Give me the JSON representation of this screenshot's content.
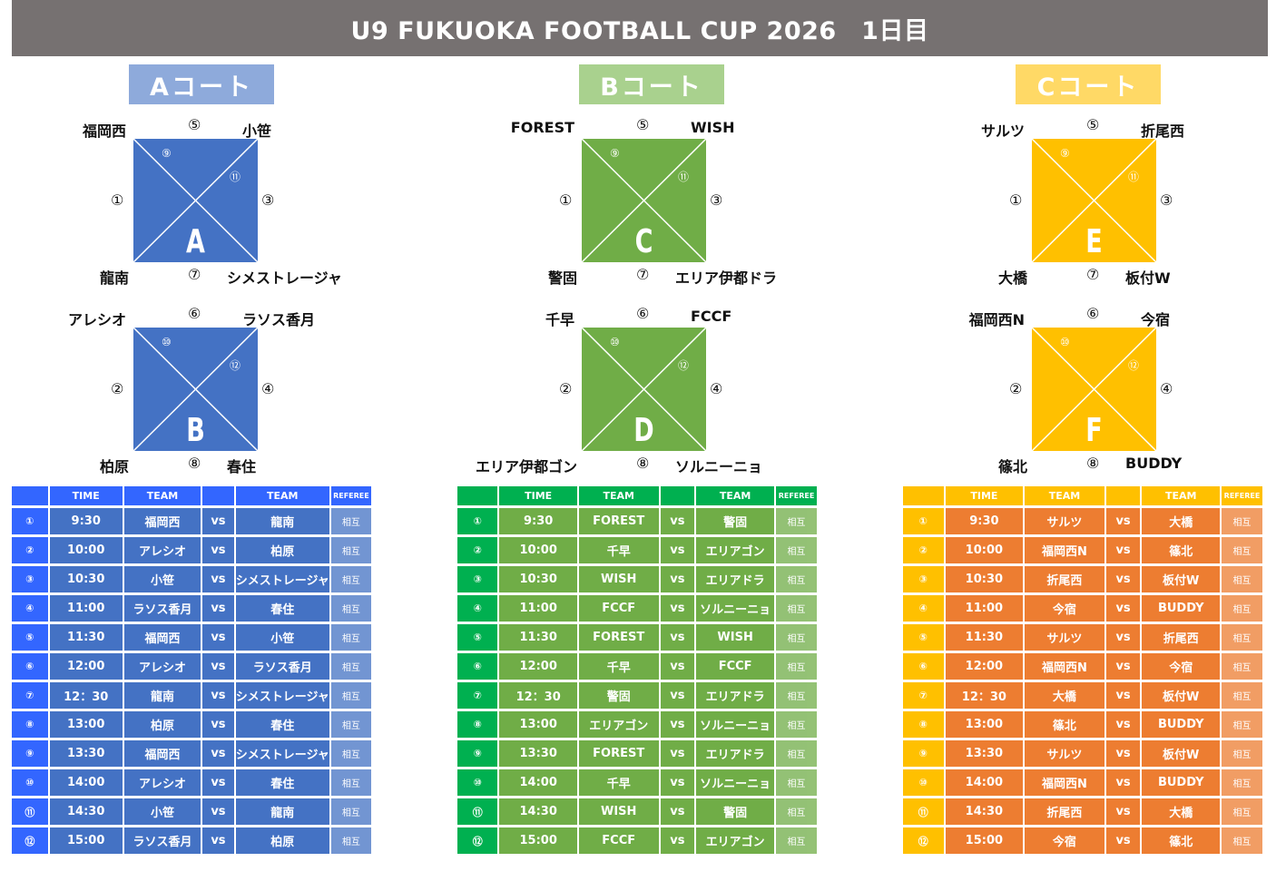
{
  "title": "U9 FUKUOKA FOOTBALL CUP 2026　1日目",
  "headers": {
    "time": "TIME",
    "team1": "TEAM",
    "team2": "TEAM",
    "referee": "REFEREE"
  },
  "courts": [
    {
      "label": "Aコート",
      "colors": {
        "label_bg": "#8eaadb",
        "square": "#4472c4",
        "header": "#3366ff",
        "row": "#4472c4"
      },
      "squares": [
        {
          "letter": "A",
          "tl": "福岡西",
          "tr": "小笹",
          "bl": "龍南",
          "br": "シメストレージャ",
          "top": "⑤",
          "left": "①",
          "right": "③",
          "bottom": "⑦",
          "in1": "⑨",
          "in2": "⑪"
        },
        {
          "letter": "B",
          "tl": "アレシオ",
          "tr": "ラソス香月",
          "bl": "柏原",
          "br": "春住",
          "top": "⑥",
          "left": "②",
          "right": "④",
          "bottom": "⑧",
          "in1": "⑩",
          "in2": "⑫"
        }
      ],
      "rows": [
        {
          "no": "①",
          "time": "9:30",
          "t1": "福岡西",
          "vs": "vs",
          "t2": "龍南",
          "ref": "相互"
        },
        {
          "no": "②",
          "time": "10:00",
          "t1": "アレシオ",
          "vs": "vs",
          "t2": "柏原",
          "ref": "相互"
        },
        {
          "no": "③",
          "time": "10:30",
          "t1": "小笹",
          "vs": "vs",
          "t2": "シメストレージャ",
          "ref": "相互"
        },
        {
          "no": "④",
          "time": "11:00",
          "t1": "ラソス香月",
          "vs": "vs",
          "t2": "春住",
          "ref": "相互"
        },
        {
          "no": "⑤",
          "time": "11:30",
          "t1": "福岡西",
          "vs": "vs",
          "t2": "小笹",
          "ref": "相互"
        },
        {
          "no": "⑥",
          "time": "12:00",
          "t1": "アレシオ",
          "vs": "vs",
          "t2": "ラソス香月",
          "ref": "相互"
        },
        {
          "no": "⑦",
          "time": "12：30",
          "t1": "龍南",
          "vs": "vs",
          "t2": "シメストレージャ",
          "ref": "相互"
        },
        {
          "no": "⑧",
          "time": "13:00",
          "t1": "柏原",
          "vs": "vs",
          "t2": "春住",
          "ref": "相互"
        },
        {
          "no": "⑨",
          "time": "13:30",
          "t1": "福岡西",
          "vs": "vs",
          "t2": "シメストレージャ",
          "ref": "相互"
        },
        {
          "no": "⑩",
          "time": "14:00",
          "t1": "アレシオ",
          "vs": "vs",
          "t2": "春住",
          "ref": "相互"
        },
        {
          "no": "⑪",
          "time": "14:30",
          "t1": "小笹",
          "vs": "vs",
          "t2": "龍南",
          "ref": "相互"
        },
        {
          "no": "⑫",
          "time": "15:00",
          "t1": "ラソス香月",
          "vs": "vs",
          "t2": "柏原",
          "ref": "相互"
        }
      ]
    },
    {
      "label": "Bコート",
      "colors": {
        "label_bg": "#a9d18e",
        "square": "#70ad47",
        "header": "#00b050",
        "row": "#70ad47"
      },
      "squares": [
        {
          "letter": "C",
          "tl": "FOREST",
          "tr": "WISH",
          "bl": "警固",
          "br": "エリア伊都ドラ",
          "top": "⑤",
          "left": "①",
          "right": "③",
          "bottom": "⑦",
          "in1": "⑨",
          "in2": "⑪"
        },
        {
          "letter": "D",
          "tl": "千早",
          "tr": "FCCF",
          "bl": "エリア伊都ゴン",
          "br": "ソルニーニョ",
          "top": "⑥",
          "left": "②",
          "right": "④",
          "bottom": "⑧",
          "in1": "⑩",
          "in2": "⑫"
        }
      ],
      "rows": [
        {
          "no": "①",
          "time": "9:30",
          "t1": "FOREST",
          "vs": "vs",
          "t2": "警固",
          "ref": "相互"
        },
        {
          "no": "②",
          "time": "10:00",
          "t1": "千早",
          "vs": "vs",
          "t2": "エリアゴン",
          "ref": "相互"
        },
        {
          "no": "③",
          "time": "10:30",
          "t1": "WISH",
          "vs": "vs",
          "t2": "エリアドラ",
          "ref": "相互"
        },
        {
          "no": "④",
          "time": "11:00",
          "t1": "FCCF",
          "vs": "vs",
          "t2": "ソルニーニョ",
          "ref": "相互"
        },
        {
          "no": "⑤",
          "time": "11:30",
          "t1": "FOREST",
          "vs": "vs",
          "t2": "WISH",
          "ref": "相互"
        },
        {
          "no": "⑥",
          "time": "12:00",
          "t1": "千早",
          "vs": "vs",
          "t2": "FCCF",
          "ref": "相互"
        },
        {
          "no": "⑦",
          "time": "12：30",
          "t1": "警固",
          "vs": "vs",
          "t2": "エリアドラ",
          "ref": "相互"
        },
        {
          "no": "⑧",
          "time": "13:00",
          "t1": "エリアゴン",
          "vs": "vs",
          "t2": "ソルニーニョ",
          "ref": "相互"
        },
        {
          "no": "⑨",
          "time": "13:30",
          "t1": "FOREST",
          "vs": "vs",
          "t2": "エリアドラ",
          "ref": "相互"
        },
        {
          "no": "⑩",
          "time": "14:00",
          "t1": "千早",
          "vs": "vs",
          "t2": "ソルニーニョ",
          "ref": "相互"
        },
        {
          "no": "⑪",
          "time": "14:30",
          "t1": "WISH",
          "vs": "vs",
          "t2": "警固",
          "ref": "相互"
        },
        {
          "no": "⑫",
          "time": "15:00",
          "t1": "FCCF",
          "vs": "vs",
          "t2": "エリアゴン",
          "ref": "相互"
        }
      ]
    },
    {
      "label": "Cコート",
      "colors": {
        "label_bg": "#ffd966",
        "square": "#ffc000",
        "header": "#ffc000",
        "row": "#ed7d31"
      },
      "squares": [
        {
          "letter": "E",
          "tl": "サルツ",
          "tr": "折尾西",
          "bl": "大橋",
          "br": "板付W",
          "top": "⑤",
          "left": "①",
          "right": "③",
          "bottom": "⑦",
          "in1": "⑨",
          "in2": "⑪"
        },
        {
          "letter": "F",
          "tl": "福岡西N",
          "tr": "今宿",
          "bl": "篠北",
          "br": "BUDDY",
          "top": "⑥",
          "left": "②",
          "right": "④",
          "bottom": "⑧",
          "in1": "⑩",
          "in2": "⑫"
        }
      ],
      "rows": [
        {
          "no": "①",
          "time": "9:30",
          "t1": "サルツ",
          "vs": "vs",
          "t2": "大橋",
          "ref": "相互"
        },
        {
          "no": "②",
          "time": "10:00",
          "t1": "福岡西N",
          "vs": "vs",
          "t2": "篠北",
          "ref": "相互"
        },
        {
          "no": "③",
          "time": "10:30",
          "t1": "折尾西",
          "vs": "vs",
          "t2": "板付W",
          "ref": "相互"
        },
        {
          "no": "④",
          "time": "11:00",
          "t1": "今宿",
          "vs": "vs",
          "t2": "BUDDY",
          "ref": "相互"
        },
        {
          "no": "⑤",
          "time": "11:30",
          "t1": "サルツ",
          "vs": "vs",
          "t2": "折尾西",
          "ref": "相互"
        },
        {
          "no": "⑥",
          "time": "12:00",
          "t1": "福岡西N",
          "vs": "vs",
          "t2": "今宿",
          "ref": "相互"
        },
        {
          "no": "⑦",
          "time": "12：30",
          "t1": "大橋",
          "vs": "vs",
          "t2": "板付W",
          "ref": "相互"
        },
        {
          "no": "⑧",
          "time": "13:00",
          "t1": "篠北",
          "vs": "vs",
          "t2": "BUDDY",
          "ref": "相互"
        },
        {
          "no": "⑨",
          "time": "13:30",
          "t1": "サルツ",
          "vs": "vs",
          "t2": "板付W",
          "ref": "相互"
        },
        {
          "no": "⑩",
          "time": "14:00",
          "t1": "福岡西N",
          "vs": "vs",
          "t2": "BUDDY",
          "ref": "相互"
        },
        {
          "no": "⑪",
          "time": "14:30",
          "t1": "折尾西",
          "vs": "vs",
          "t2": "大橋",
          "ref": "相互"
        },
        {
          "no": "⑫",
          "time": "15:00",
          "t1": "今宿",
          "vs": "vs",
          "t2": "篠北",
          "ref": "相互"
        }
      ]
    }
  ]
}
